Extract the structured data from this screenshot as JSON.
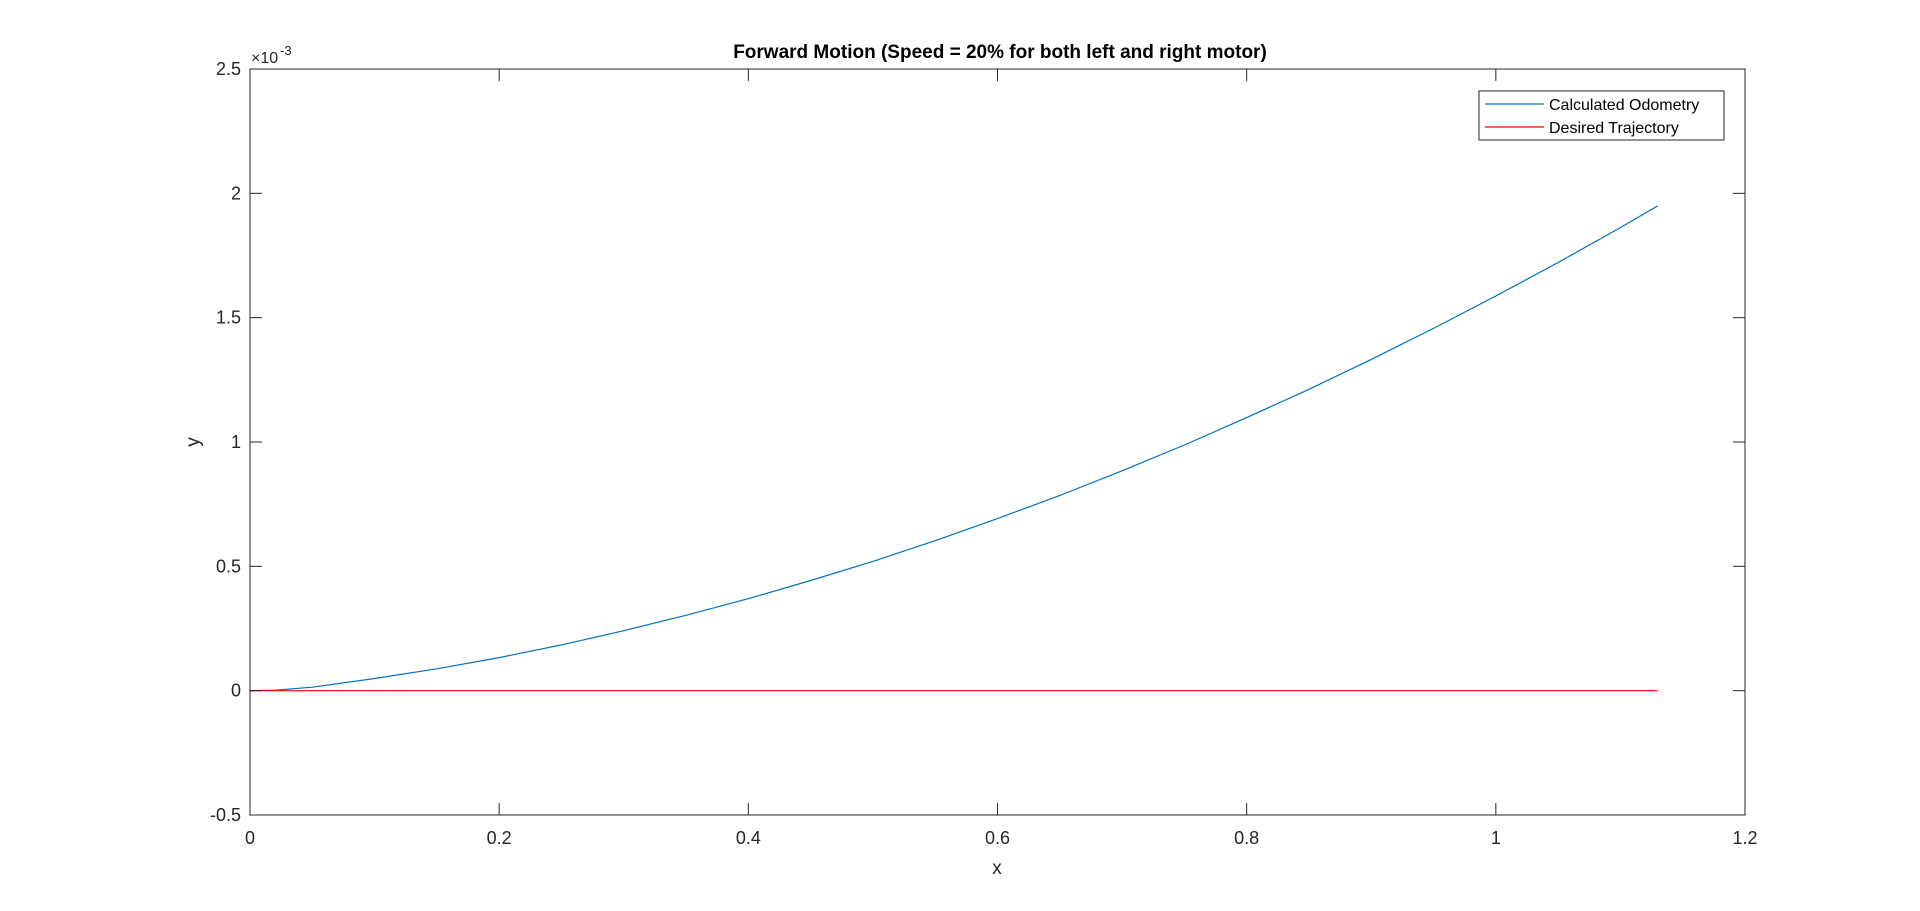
{
  "chart_data": {
    "type": "line",
    "title": "Forward Motion (Speed = 20% for both left and right motor)",
    "xlabel": "x",
    "ylabel": "y",
    "xlim": [
      0,
      1.2
    ],
    "ylim": [
      -0.0005,
      0.0025
    ],
    "x_ticks": [
      "0",
      "0.2",
      "0.4",
      "0.6",
      "0.8",
      "1",
      "1.2"
    ],
    "y_ticks": [
      "-0.5",
      "0",
      "0.5",
      "1",
      "1.5",
      "2",
      "2.5"
    ],
    "y_multiplier": "×10",
    "y_exponent": "-3",
    "grid": false,
    "legend_position": "top-right",
    "series": [
      {
        "name": "Calculated Odometry",
        "color": "#0072BD",
        "x": [
          0,
          0.02,
          0.05,
          0.1,
          0.15,
          0.2,
          0.25,
          0.3,
          0.35,
          0.4,
          0.45,
          0.5,
          0.55,
          0.6,
          0.65,
          0.7,
          0.75,
          0.8,
          0.85,
          0.9,
          0.95,
          1.0,
          1.05,
          1.1,
          1.13
        ],
        "y": [
          0,
          2e-06,
          1.4e-05,
          4.9e-05,
          8.8e-05,
          0.000133,
          0.000184,
          0.000241,
          0.000303,
          0.00037,
          0.000443,
          0.00052,
          0.000603,
          0.000692,
          0.000785,
          0.000884,
          0.000988,
          0.001098,
          0.001212,
          0.001332,
          0.001457,
          0.001587,
          0.001722,
          0.001862,
          0.00195
        ]
      },
      {
        "name": "Desired Trajectory",
        "color": "#FF0000",
        "x": [
          0,
          1.13
        ],
        "y": [
          0,
          0
        ]
      }
    ]
  }
}
